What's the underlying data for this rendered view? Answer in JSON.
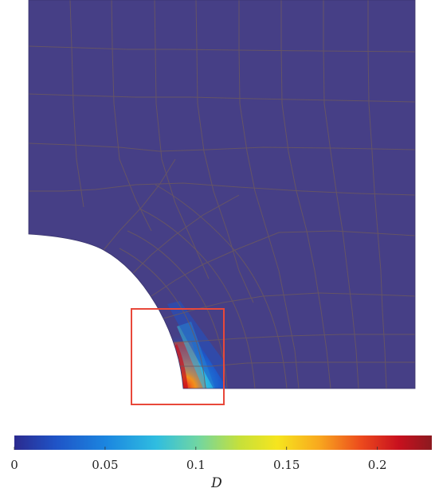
{
  "figure": {
    "description_free": true,
    "colors": {
      "background_field": "#463f86",
      "mesh_line": "#6d5a5e",
      "highlight_box": "#e8483a",
      "colormap": [
        "#2b2a8f",
        "#1f54c7",
        "#1b86e0",
        "#2fbde0",
        "#71d6a2",
        "#c6e03a",
        "#f6e51e",
        "#f8a81e",
        "#ec4a1d",
        "#c8101e",
        "#8c1a20"
      ]
    }
  },
  "colorbar": {
    "label": "D",
    "min": 0,
    "max": 0.23,
    "ticks": [
      {
        "value": 0,
        "label": "0"
      },
      {
        "value": 0.05,
        "label": "0.05"
      },
      {
        "value": 0.1,
        "label": "0.1"
      },
      {
        "value": 0.15,
        "label": "0.15"
      },
      {
        "value": 0.2,
        "label": "0.2"
      }
    ]
  }
}
